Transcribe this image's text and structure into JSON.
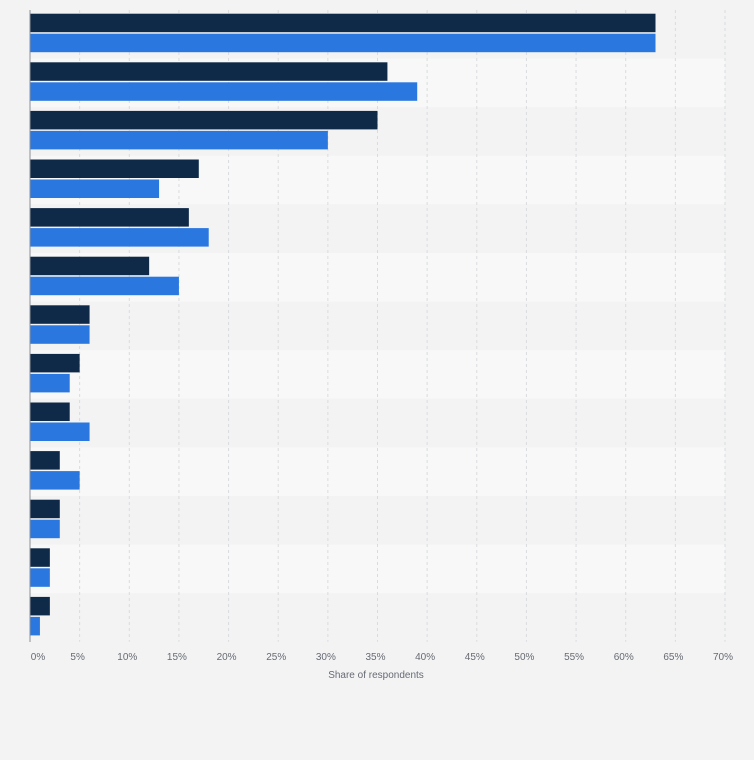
{
  "chart_data": {
    "type": "bar",
    "orientation": "horizontal",
    "categories": [
      "",
      "",
      "",
      "",
      "",
      "",
      "",
      "",
      "",
      "",
      "",
      "",
      ""
    ],
    "series": [
      {
        "values": [
          63,
          36,
          35,
          17,
          16,
          12,
          6,
          5,
          4,
          3,
          3,
          2,
          2
        ],
        "color": "#0f2a48"
      },
      {
        "values": [
          63,
          39,
          30,
          13,
          18,
          15,
          6,
          4,
          6,
          5,
          3,
          2,
          1
        ],
        "color": "#2a77e0"
      }
    ],
    "xlabel": "Share of respondents",
    "ylabel": "",
    "xlim": [
      0,
      70
    ],
    "tick_labels": [
      "0%",
      "5%",
      "10%",
      "15%",
      "20%",
      "25%",
      "30%",
      "35%",
      "40%",
      "45%",
      "50%",
      "55%",
      "60%",
      "65%",
      "70%"
    ],
    "grid": "vertical dashed",
    "legend": "none",
    "row_band_colors": [
      "#f3f3f4",
      "#f8f8f8"
    ],
    "gridline_color": "#d9dbde"
  }
}
